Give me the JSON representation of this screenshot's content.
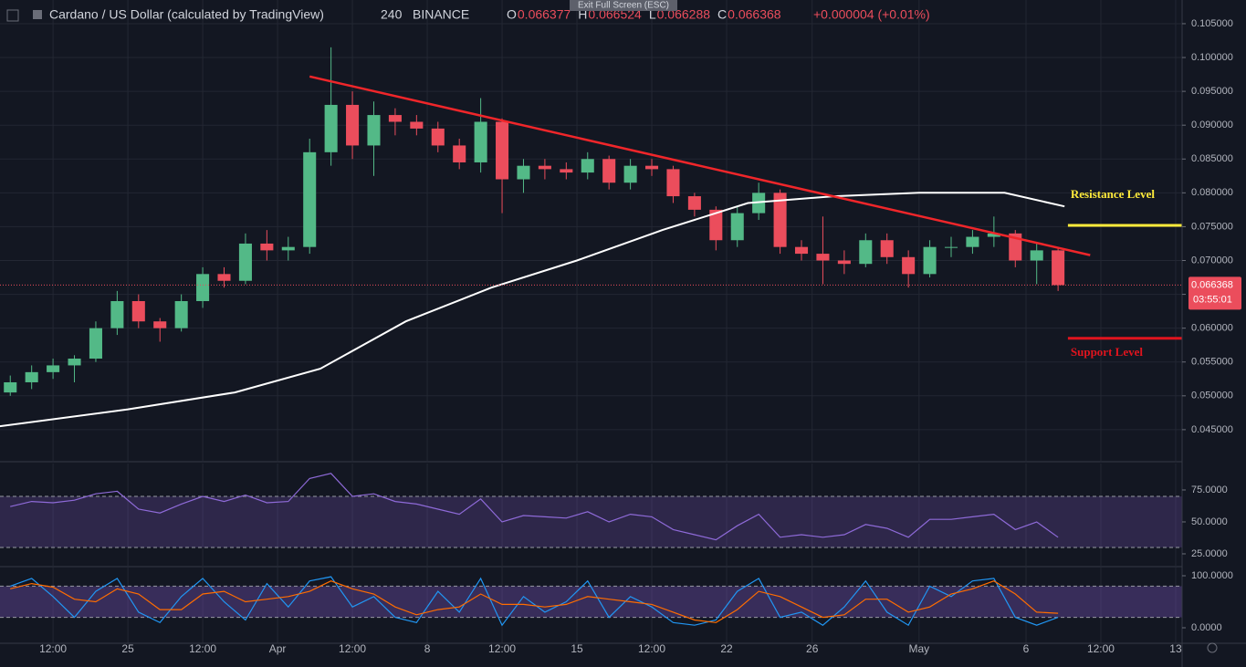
{
  "header": {
    "symbol": "Cardano / US Dollar (calculated by TradingView)",
    "interval": "240",
    "exchange": "BINANCE",
    "ohlc": [
      {
        "key": "O",
        "value": "0.066377"
      },
      {
        "key": "H",
        "value": "0.066524"
      },
      {
        "key": "L",
        "value": "0.066288"
      },
      {
        "key": "C",
        "value": "0.066368"
      }
    ],
    "change": "+0.000004 (+0.01%)",
    "fullscreen": "Exit Full Screen (ESC)"
  },
  "chart_data": [
    {
      "type": "candlestick",
      "up_color": "#53b987",
      "down_color": "#eb4d5c",
      "xlim": [
        19.02,
        74.3
      ],
      "ylim": [
        0.0404,
        0.1085
      ],
      "xticks": [
        {
          "value": 21.5,
          "label": "12:00"
        },
        25,
        {
          "value": 28.5,
          "label": "12:00"
        },
        {
          "value": 32,
          "label": "Apr"
        },
        {
          "value": 35.5,
          "label": "12:00"
        },
        {
          "value": 39,
          "label": "8"
        },
        {
          "value": 42.5,
          "label": "12:00"
        },
        {
          "value": 46,
          "label": "15"
        },
        {
          "value": 49.5,
          "label": "12:00"
        },
        {
          "value": 53,
          "label": "22"
        },
        {
          "value": 57,
          "label": "26"
        },
        {
          "value": 62,
          "label": "May"
        },
        {
          "value": 67,
          "label": "6"
        },
        {
          "value": 70.5,
          "label": "12:00"
        },
        {
          "value": 74,
          "label": "13"
        }
      ],
      "yticks": [
        {
          "value": 0.045,
          "label": "0.045000"
        },
        {
          "value": 0.05,
          "label": "0.050000"
        },
        {
          "value": 0.055,
          "label": "0.055000"
        },
        {
          "value": 0.06,
          "label": "0.060000"
        },
        {
          "value": 0.065,
          "label": "0.065000"
        },
        {
          "value": 0.07,
          "label": "0.070000"
        },
        {
          "value": 0.075,
          "label": "0.075000"
        },
        {
          "value": 0.08,
          "label": "0.080000"
        },
        {
          "value": 0.085,
          "label": "0.085000"
        },
        {
          "value": 0.09,
          "label": "0.090000"
        },
        {
          "value": 0.095,
          "label": "0.095000"
        },
        {
          "value": 0.1,
          "label": "0.100000"
        },
        {
          "value": 0.105,
          "label": "0.105000"
        }
      ],
      "x": [
        19.5,
        20.5,
        21.5,
        22.5,
        23.5,
        24.5,
        25.5,
        26.5,
        27.5,
        28.5,
        29.5,
        30.5,
        31.5,
        32.5,
        33.5,
        34.5,
        35.5,
        36.5,
        37.5,
        38.5,
        39.5,
        40.5,
        41.5,
        42.5,
        43.5,
        44.5,
        45.5,
        46.5,
        47.5,
        48.5,
        49.5,
        50.5,
        51.5,
        52.5,
        53.5,
        54.5,
        55.5,
        56.5,
        57.5,
        58.5,
        59.5,
        60.5,
        61.5,
        62.5,
        63.5,
        64.5,
        65.5,
        66.5,
        67.5,
        68.5
      ],
      "open": [
        0.0505,
        0.052,
        0.0535,
        0.0545,
        0.0555,
        0.06,
        0.064,
        0.061,
        0.06,
        0.064,
        0.068,
        0.067,
        0.0725,
        0.0715,
        0.072,
        0.086,
        0.093,
        0.087,
        0.0915,
        0.0905,
        0.0895,
        0.087,
        0.0845,
        0.0905,
        0.082,
        0.084,
        0.0835,
        0.083,
        0.085,
        0.0815,
        0.084,
        0.0835,
        0.0795,
        0.0775,
        0.073,
        0.077,
        0.08,
        0.072,
        0.071,
        0.07,
        0.0695,
        0.073,
        0.0705,
        0.068,
        0.072,
        0.072,
        0.0735,
        0.074,
        0.07,
        0.0715
      ],
      "high": [
        0.053,
        0.0545,
        0.0555,
        0.056,
        0.061,
        0.0655,
        0.065,
        0.0615,
        0.065,
        0.069,
        0.069,
        0.074,
        0.0745,
        0.0735,
        0.088,
        0.1015,
        0.095,
        0.0935,
        0.0925,
        0.0915,
        0.0905,
        0.088,
        0.094,
        0.091,
        0.085,
        0.085,
        0.0845,
        0.086,
        0.0855,
        0.085,
        0.085,
        0.084,
        0.08,
        0.078,
        0.078,
        0.0815,
        0.0805,
        0.073,
        0.0765,
        0.0715,
        0.074,
        0.074,
        0.0715,
        0.073,
        0.0735,
        0.0745,
        0.0765,
        0.0745,
        0.0725,
        0.072
      ],
      "low": [
        0.05,
        0.051,
        0.0525,
        0.052,
        0.055,
        0.059,
        0.06,
        0.058,
        0.0595,
        0.063,
        0.066,
        0.0665,
        0.07,
        0.07,
        0.071,
        0.084,
        0.085,
        0.0825,
        0.0885,
        0.0885,
        0.086,
        0.0835,
        0.083,
        0.077,
        0.08,
        0.082,
        0.082,
        0.082,
        0.0805,
        0.0805,
        0.0825,
        0.0785,
        0.0765,
        0.0715,
        0.072,
        0.076,
        0.071,
        0.07,
        0.0665,
        0.068,
        0.069,
        0.0695,
        0.066,
        0.0675,
        0.0705,
        0.071,
        0.072,
        0.069,
        0.0665,
        0.0655
      ],
      "close": [
        0.052,
        0.0535,
        0.0545,
        0.0555,
        0.06,
        0.064,
        0.061,
        0.06,
        0.064,
        0.068,
        0.067,
        0.0725,
        0.0715,
        0.072,
        0.086,
        0.093,
        0.087,
        0.0915,
        0.0905,
        0.0895,
        0.087,
        0.0845,
        0.0905,
        0.082,
        0.084,
        0.0835,
        0.083,
        0.085,
        0.0815,
        0.084,
        0.0835,
        0.0795,
        0.0775,
        0.073,
        0.077,
        0.08,
        0.072,
        0.071,
        0.07,
        0.0695,
        0.073,
        0.0705,
        0.068,
        0.072,
        0.072,
        0.0735,
        0.074,
        0.07,
        0.0715,
        0.066368
      ],
      "ma": {
        "color": "#ffffff",
        "x": [
          19,
          25,
          30,
          34,
          38,
          42,
          46,
          50,
          54,
          58,
          62,
          66,
          68.8
        ],
        "values": [
          0.0455,
          0.048,
          0.0505,
          0.054,
          0.061,
          0.066,
          0.07,
          0.0745,
          0.0785,
          0.0795,
          0.08,
          0.08,
          0.078
        ]
      },
      "trendline": {
        "color": "#f0262a",
        "x": [
          33.5,
          70
        ],
        "values": [
          0.0972,
          0.0708
        ]
      },
      "levels": [
        {
          "label": "Resistance Level",
          "value": 0.0752,
          "x_start": 68.96,
          "color": "#ffeb3b",
          "label_color": "#ffeb3b"
        },
        {
          "label": "Support Level",
          "value": 0.0585,
          "x_start": 68.96,
          "color": "#e0141e",
          "label_color": "#e0141e"
        }
      ],
      "last_price": {
        "value": 0.066368,
        "label": "0.066368",
        "countdown": "03:55:01",
        "color": "#eb4d5c"
      }
    },
    {
      "type": "line",
      "ylim": [
        15.7,
        95.7
      ],
      "yticks": [
        {
          "value": 25,
          "label": "25.0000"
        },
        {
          "value": 50,
          "label": "50.0000"
        },
        {
          "value": 75,
          "label": "75.0000"
        }
      ],
      "bands": [
        30,
        70
      ],
      "band_fill": "rgba(126,87,194,0.25)",
      "series": [
        {
          "color": "#8e6ad8",
          "values": [
            62,
            66,
            65,
            67,
            72,
            74,
            60,
            57,
            64,
            70,
            66,
            71,
            65,
            66,
            84,
            88,
            70,
            72,
            66,
            64,
            60,
            56,
            68,
            50,
            55,
            54,
            53,
            58,
            50,
            56,
            54,
            44,
            40,
            36,
            47,
            56,
            38,
            40,
            38,
            40,
            48,
            45,
            38,
            52,
            52,
            54,
            56,
            44,
            50,
            38
          ]
        }
      ]
    },
    {
      "type": "line",
      "ylim": [
        -29.8,
        115.8
      ],
      "yticks": [
        {
          "value": 0,
          "label": "0.0000"
        },
        {
          "value": 100,
          "label": "100.0000"
        }
      ],
      "bands": [
        20,
        80
      ],
      "band_fill": "rgba(126,87,194,0.35)",
      "series": [
        {
          "color": "#2196f3",
          "values": [
            80,
            95,
            60,
            20,
            70,
            95,
            30,
            10,
            60,
            95,
            50,
            15,
            85,
            40,
            90,
            98,
            40,
            60,
            20,
            10,
            70,
            30,
            95,
            5,
            60,
            30,
            50,
            90,
            20,
            60,
            40,
            10,
            5,
            15,
            70,
            95,
            20,
            30,
            5,
            40,
            90,
            30,
            5,
            80,
            60,
            90,
            95,
            20,
            5,
            20
          ]
        },
        {
          "color": "#ff6d00",
          "values": [
            75,
            85,
            78,
            55,
            50,
            75,
            65,
            35,
            35,
            65,
            70,
            50,
            55,
            60,
            70,
            90,
            75,
            65,
            40,
            25,
            35,
            40,
            65,
            45,
            45,
            40,
            45,
            60,
            55,
            50,
            45,
            30,
            15,
            10,
            35,
            70,
            60,
            40,
            20,
            25,
            55,
            55,
            30,
            40,
            65,
            75,
            90,
            65,
            30,
            28
          ]
        }
      ]
    }
  ]
}
